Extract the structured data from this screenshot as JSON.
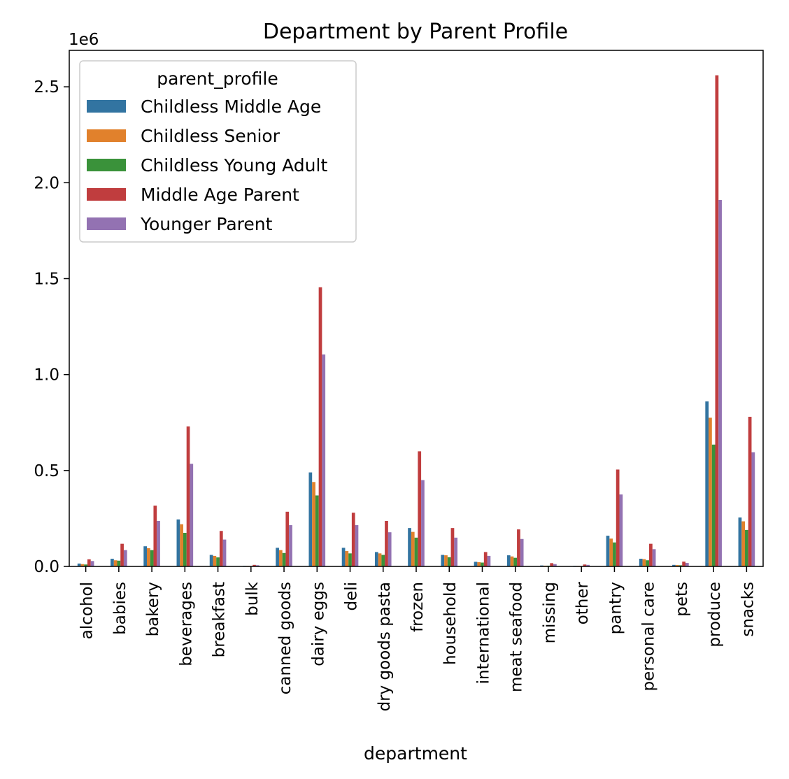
{
  "chart_data": {
    "type": "bar",
    "title": "Department by Parent Profile",
    "xlabel": "department",
    "ylabel": "",
    "y_scale_label": "1e6",
    "y_multiplier": 1000000,
    "ylim": [
      0,
      2.69
    ],
    "yticks": [
      0.0,
      0.5,
      1.0,
      1.5,
      2.0,
      2.5
    ],
    "ytick_labels": [
      "0.0",
      "0.5",
      "1.0",
      "1.5",
      "2.0",
      "2.5"
    ],
    "grid": false,
    "legend": {
      "title": "parent_profile",
      "placement": "upper left"
    },
    "categories": [
      "alcohol",
      "babies",
      "bakery",
      "beverages",
      "breakfast",
      "bulk",
      "canned goods",
      "dairy eggs",
      "deli",
      "dry goods pasta",
      "frozen",
      "household",
      "international",
      "meat seafood",
      "missing",
      "other",
      "pantry",
      "personal care",
      "pets",
      "produce",
      "snacks"
    ],
    "series": [
      {
        "name": "Childless Middle Age",
        "color": "#3274a1",
        "values": [
          0.015,
          0.04,
          0.105,
          0.245,
          0.06,
          0.003,
          0.097,
          0.49,
          0.097,
          0.075,
          0.2,
          0.06,
          0.024,
          0.058,
          0.005,
          0.003,
          0.16,
          0.04,
          0.008,
          0.86,
          0.255
        ]
      },
      {
        "name": "Childless Senior",
        "color": "#e1812c",
        "values": [
          0.012,
          0.032,
          0.095,
          0.22,
          0.055,
          0.003,
          0.085,
          0.44,
          0.08,
          0.068,
          0.18,
          0.058,
          0.022,
          0.052,
          0.004,
          0.003,
          0.145,
          0.038,
          0.007,
          0.775,
          0.235
        ]
      },
      {
        "name": "Childless Young Adult",
        "color": "#3a923a",
        "values": [
          0.01,
          0.03,
          0.085,
          0.175,
          0.047,
          0.002,
          0.07,
          0.37,
          0.068,
          0.06,
          0.15,
          0.048,
          0.02,
          0.045,
          0.004,
          0.002,
          0.125,
          0.032,
          0.006,
          0.635,
          0.19
        ]
      },
      {
        "name": "Middle Age Parent",
        "color": "#c03d3e",
        "values": [
          0.037,
          0.118,
          0.317,
          0.73,
          0.185,
          0.008,
          0.285,
          1.455,
          0.28,
          0.237,
          0.6,
          0.2,
          0.075,
          0.193,
          0.017,
          0.01,
          0.505,
          0.118,
          0.025,
          2.56,
          0.78
        ]
      },
      {
        "name": "Younger Parent",
        "color": "#9372b2",
        "values": [
          0.028,
          0.085,
          0.237,
          0.535,
          0.14,
          0.006,
          0.215,
          1.105,
          0.215,
          0.178,
          0.45,
          0.15,
          0.055,
          0.143,
          0.012,
          0.008,
          0.375,
          0.09,
          0.018,
          1.91,
          0.595
        ]
      }
    ]
  }
}
